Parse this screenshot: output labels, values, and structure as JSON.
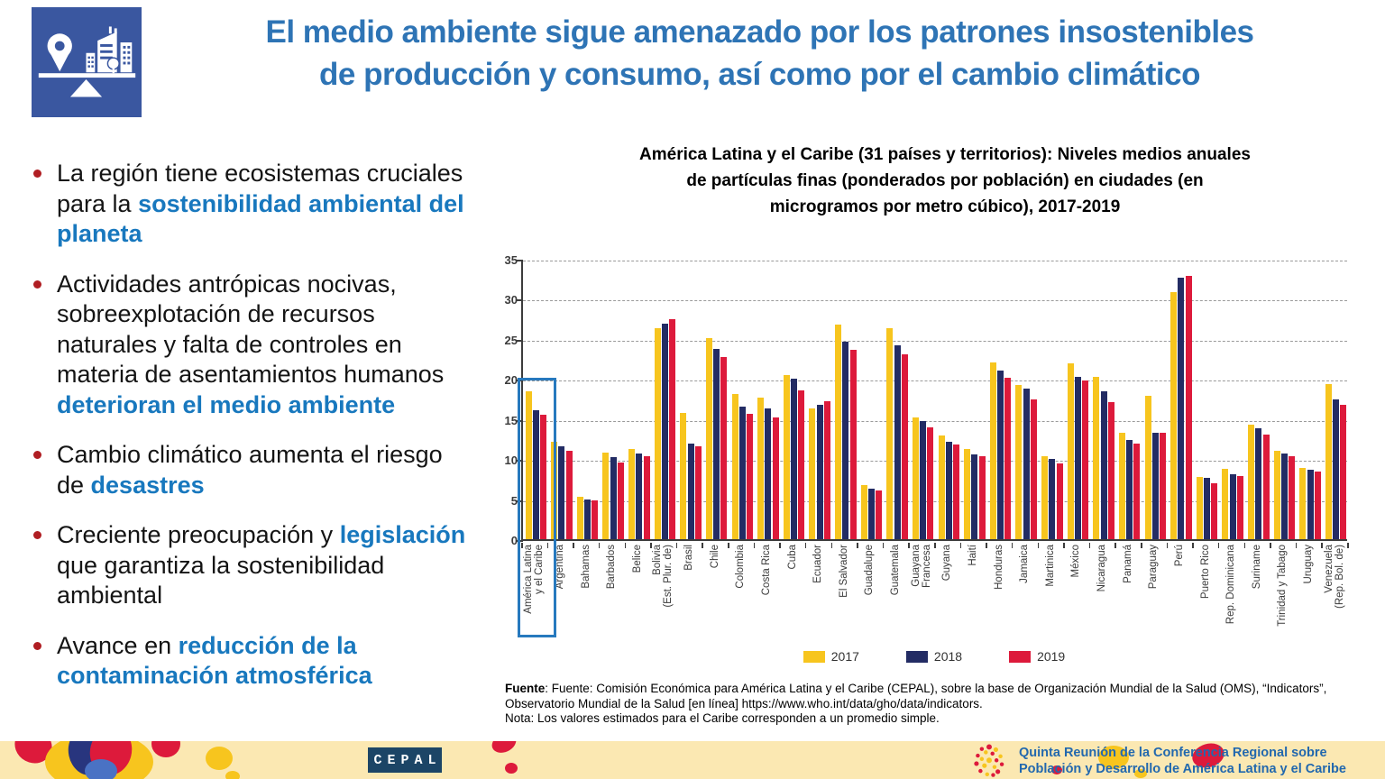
{
  "header": {
    "title_line1": "El medio ambiente sigue amenazado por los patrones insostenibles",
    "title_line2": "de producción y consumo, así como por el cambio climático"
  },
  "bullets": [
    {
      "segments": [
        {
          "t": "La región tiene ecosistemas cruciales para la ",
          "em": false
        },
        {
          "t": "sostenibilidad ambiental del planeta",
          "em": true
        }
      ]
    },
    {
      "segments": [
        {
          "t": "Actividades antrópicas nocivas, sobreexplotación de recursos naturales y falta de controles en materia de asentamientos humanos ",
          "em": false
        },
        {
          "t": "deterioran el medio ambiente",
          "em": true
        }
      ]
    },
    {
      "segments": [
        {
          "t": "Cambio climático aumenta el riesgo de ",
          "em": false
        },
        {
          "t": "desastres",
          "em": true
        }
      ]
    },
    {
      "segments": [
        {
          "t": "Creciente preocupación y ",
          "em": false
        },
        {
          "t": "legislación",
          "em": true
        },
        {
          "t": " que garantiza la sostenibilidad ambiental",
          "em": false
        }
      ]
    },
    {
      "segments": [
        {
          "t": "Avance en ",
          "em": false
        },
        {
          "t": "reducción de la contaminación atmosférica",
          "em": true
        }
      ]
    }
  ],
  "chart": {
    "title_lines": [
      "América Latina y el Caribe (31 países y territorios): Niveles medios anuales",
      "de partículas finas (ponderados por población) en ciudades (en",
      "microgramos por metro cúbico), 2017-2019"
    ],
    "source_label": "Fuente",
    "source_text": ":   Fuente: Comisión Económica para América Latina y el Caribe (CEPAL), sobre la base de Organización Mundial de la Salud (OMS), “Indicators”, Observatorio Mundial de la Salud [en línea] https://www.who.int/data/gho/data/indicators.",
    "note": "Nota: Los valores estimados para el Caribe corresponden a un promedio simple."
  },
  "chart_data": {
    "type": "bar",
    "title": "América Latina y el Caribe (31 países y territorios): Niveles medios anuales de partículas finas (ponderados por población) en ciudades (en microgramos por metro cúbico), 2017-2019",
    "xlabel": "",
    "ylabel": "microgramos por metro cúbico",
    "ylim": [
      0,
      35
    ],
    "yticks": [
      0,
      5,
      10,
      15,
      20,
      25,
      30,
      35
    ],
    "grid": "dashed-horizontal",
    "legend_position": "bottom",
    "highlight": {
      "category_index": 0,
      "top_value": 20,
      "color": "#2779BE"
    },
    "categories": [
      "América Latina\ny el Caribe",
      "Argentina",
      "Bahamas",
      "Barbados",
      "Belice",
      "Bolivia\n(Est. Plur. de)",
      "Brasil",
      "Chile",
      "Colombia",
      "Costa Rica",
      "Cuba",
      "Ecuador",
      "El Salvador",
      "Guadalupe",
      "Guatemala",
      "Guayana\nFrancesa",
      "Guyana",
      "Haití",
      "Honduras",
      "Jamaica",
      "Martinica",
      "México",
      "Nicaragua",
      "Panamá",
      "Paraguay",
      "Perú",
      "Puerto Rico",
      "Rep. Dominicana",
      "Suriname",
      "Trinidad y Tabago",
      "Uruguay",
      "Venezuela\n(Rep. Bol. de)"
    ],
    "series": [
      {
        "name": "2017",
        "color": "#F7C51E",
        "values": [
          18.5,
          12.1,
          5.3,
          10.8,
          11.3,
          26.3,
          15.8,
          25.1,
          18.1,
          17.7,
          20.5,
          16.3,
          26.8,
          6.7,
          26.3,
          15.2,
          13.0,
          11.3,
          22.1,
          19.2,
          10.4,
          21.9,
          20.3,
          13.3,
          17.9,
          30.8,
          7.8,
          8.8,
          14.3,
          11.0,
          8.9,
          19.4
        ]
      },
      {
        "name": "2018",
        "color": "#232C64",
        "values": [
          16.1,
          11.6,
          5.0,
          10.2,
          10.7,
          26.9,
          11.9,
          23.8,
          16.5,
          16.3,
          20.0,
          16.8,
          24.7,
          6.3,
          24.2,
          14.7,
          12.1,
          10.6,
          21.0,
          18.8,
          10.0,
          20.3,
          18.5,
          12.4,
          13.3,
          32.6,
          7.6,
          8.1,
          13.8,
          10.7,
          8.7,
          17.5
        ]
      },
      {
        "name": "2019",
        "color": "#DD1A3B",
        "values": [
          15.5,
          11.0,
          4.8,
          9.6,
          10.4,
          27.5,
          11.6,
          22.7,
          15.7,
          15.2,
          18.6,
          17.2,
          23.6,
          6.1,
          23.1,
          14.0,
          11.8,
          10.3,
          20.1,
          17.5,
          9.5,
          19.8,
          17.1,
          11.9,
          13.3,
          32.9,
          7.0,
          7.9,
          13.1,
          10.4,
          8.4,
          16.8
        ]
      }
    ]
  },
  "footer": {
    "cepal_label": "CEPAL",
    "conf_line1": "Quinta Reunión de la Conferencia Regional sobre",
    "conf_line2": "Población y Desarrollo de América Latina y el Caribe"
  },
  "colors": {
    "title_blue": "#2E74B5",
    "emphasis_blue": "#1878BE",
    "bullet_marker_red": "#B01E23",
    "highlight_box_blue": "#2779BE",
    "footer_band": "#FBE8B2",
    "footer_text_blue": "#2268AE",
    "cepal_logo_navy": "#1C4566",
    "header_icon_blue": "#3A57A0",
    "bar_2017": "#F7C51E",
    "bar_2018": "#232C64",
    "bar_2019": "#DD1A3B"
  }
}
